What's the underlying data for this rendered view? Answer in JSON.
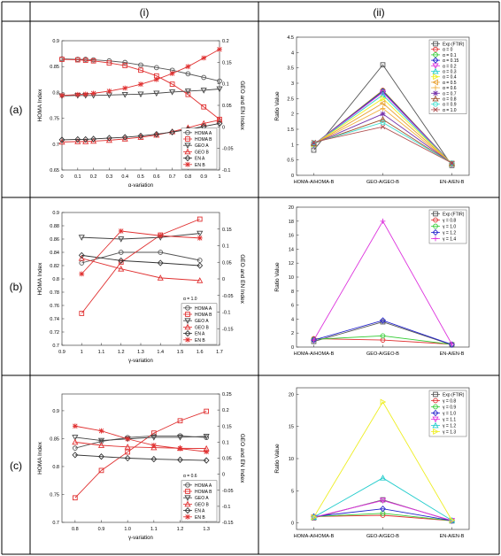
{
  "table": {
    "header_i": "(i)",
    "header_ii": "(ii)",
    "row_labels": [
      "(a)",
      "(b)",
      "(c)"
    ]
  },
  "chart_data": [
    {
      "id": "a-i",
      "type": "line",
      "xlabel": "α-variation",
      "ylabel": "HOMA Index",
      "y2label": "GEO and EN Index",
      "x": [
        0,
        0.1,
        0.15,
        0.2,
        0.3,
        0.4,
        0.5,
        0.6,
        0.7,
        0.8,
        0.9,
        1
      ],
      "xticks": [
        0,
        0.1,
        0.2,
        0.3,
        0.4,
        0.5,
        0.6,
        0.7,
        0.8,
        0.9,
        1
      ],
      "xticklabels": [
        "0",
        "0.1",
        "0.2",
        "0.3",
        "0.4",
        "0.5",
        "0.6",
        "0.7",
        "0.8",
        "0.9",
        "1"
      ],
      "ylim": [
        0.65,
        0.9
      ],
      "yticks": [
        0.65,
        0.7,
        0.75,
        0.8,
        0.85,
        0.9
      ],
      "yticklabels": [
        "0.65",
        "0.7",
        "0.75",
        "0.8",
        "0.85",
        "0.9"
      ],
      "y2lim": [
        -0.1,
        0.2
      ],
      "y2ticks": [
        -0.1,
        -0.05,
        0,
        0.05,
        0.1,
        0.15,
        0.2
      ],
      "y2ticklabels": [
        "-0.1",
        "-0.05",
        "0",
        "0.05",
        "0.1",
        "0.15",
        "0.2"
      ],
      "legend_position": "bottom-right",
      "legend_note": "",
      "series": [
        {
          "name": "HOMA A",
          "axis": "left",
          "color": "#555555",
          "marker": "circle",
          "values": [
            0.865,
            0.864,
            0.864,
            0.863,
            0.861,
            0.858,
            0.853,
            0.848,
            0.843,
            0.836,
            0.829,
            0.822
          ]
        },
        {
          "name": "HOMA B",
          "axis": "left",
          "color": "#e03030",
          "marker": "square",
          "values": [
            0.864,
            0.863,
            0.862,
            0.861,
            0.857,
            0.852,
            0.843,
            0.832,
            0.816,
            0.796,
            0.772,
            0.748
          ]
        },
        {
          "name": "GEO A",
          "axis": "right",
          "color": "#444444",
          "marker": "triangle-down",
          "values": [
            0.072,
            0.073,
            0.073,
            0.073,
            0.074,
            0.075,
            0.076,
            0.078,
            0.081,
            0.083,
            0.085,
            0.088
          ]
        },
        {
          "name": "GEO B",
          "axis": "right",
          "color": "#e03030",
          "marker": "triangle-up",
          "values": [
            -0.035,
            -0.034,
            -0.034,
            -0.033,
            -0.031,
            -0.028,
            -0.024,
            -0.019,
            -0.011,
            -0.002,
            0.008,
            0.016
          ]
        },
        {
          "name": "EN A",
          "axis": "right",
          "color": "#333333",
          "marker": "diamond",
          "values": [
            -0.03,
            -0.029,
            -0.029,
            -0.028,
            -0.026,
            -0.024,
            -0.021,
            -0.017,
            -0.012,
            -0.006,
            0.001,
            0.008
          ]
        },
        {
          "name": "EN B",
          "axis": "right",
          "color": "#e03030",
          "marker": "star",
          "values": [
            0.073,
            0.075,
            0.076,
            0.078,
            0.083,
            0.09,
            0.099,
            0.11,
            0.124,
            0.14,
            0.16,
            0.18
          ]
        }
      ]
    },
    {
      "id": "a-ii",
      "type": "line",
      "categories": [
        "HOMA-A/HOMA-B",
        "GEO-A/GEO-B",
        "EN-A/EN-B"
      ],
      "ylabel": "Ratio Value",
      "ylim": [
        0,
        4.5
      ],
      "yticks": [
        0,
        0.5,
        1,
        1.5,
        2,
        2.5,
        3,
        3.5,
        4,
        4.5
      ],
      "yticklabels": [
        "0",
        "0.5",
        "1",
        "1.5",
        "2",
        "2.5",
        "3",
        "3.5",
        "4",
        "4.5"
      ],
      "legend_position": "top-right",
      "series": [
        {
          "name": "Exp (FTIR)",
          "color": "#555555",
          "marker": "square",
          "values": [
            0.82,
            3.6,
            0.32
          ]
        },
        {
          "name": "α = 0",
          "color": "#e03030",
          "marker": "circle",
          "values": [
            1.0,
            2.77,
            0.37
          ]
        },
        {
          "name": "α = 0.1",
          "color": "#33cc33",
          "marker": "circle",
          "values": [
            1.0,
            2.75,
            0.37
          ]
        },
        {
          "name": "α = 0.15",
          "color": "#2222cc",
          "marker": "diamond",
          "values": [
            1.0,
            2.73,
            0.37
          ]
        },
        {
          "name": "α = 0.2",
          "color": "#dd33dd",
          "marker": "triangle-down",
          "values": [
            1.0,
            2.7,
            0.37
          ]
        },
        {
          "name": "α = 0.3",
          "color": "#22cccc",
          "marker": "triangle-up",
          "values": [
            1.0,
            2.62,
            0.37
          ]
        },
        {
          "name": "α = 0.4",
          "color": "#eeee22",
          "marker": "triangle-right",
          "values": [
            1.01,
            2.5,
            0.38
          ]
        },
        {
          "name": "α = 0.5",
          "color": "#e8a030",
          "marker": "triangle-left",
          "values": [
            1.01,
            2.35,
            0.38
          ]
        },
        {
          "name": "α = 0.6",
          "color": "#f0b040",
          "marker": "plus",
          "values": [
            1.02,
            2.18,
            0.38
          ]
        },
        {
          "name": "α = 0.7",
          "color": "#7733aa",
          "marker": "star",
          "values": [
            1.03,
            2.0,
            0.39
          ]
        },
        {
          "name": "α = 0.8",
          "color": "#a0522d",
          "marker": "triangle-up",
          "values": [
            1.04,
            1.82,
            0.39
          ]
        },
        {
          "name": "α = 0.9",
          "color": "#40e0d0",
          "marker": "circle",
          "values": [
            1.06,
            1.72,
            0.4
          ]
        },
        {
          "name": "α = 1.0",
          "color": "#b05050",
          "marker": "x",
          "values": [
            1.08,
            1.58,
            0.4
          ]
        }
      ]
    },
    {
      "id": "b-i",
      "type": "line",
      "xlabel": "γ-variation",
      "ylabel": "HOMA Index",
      "y2label": "GEO and EN Index",
      "x": [
        1.0,
        1.2,
        1.4,
        1.6
      ],
      "xlim": [
        0.9,
        1.7
      ],
      "xticks": [
        0.9,
        1.0,
        1.1,
        1.2,
        1.3,
        1.4,
        1.5,
        1.6,
        1.7
      ],
      "xticklabels": [
        "0.9",
        "1",
        "1.1",
        "1.2",
        "1.3",
        "1.4",
        "1.5",
        "1.6",
        "1.7"
      ],
      "ylim": [
        0.7,
        0.9
      ],
      "yticks": [
        0.7,
        0.72,
        0.74,
        0.76,
        0.78,
        0.8,
        0.82,
        0.84,
        0.86,
        0.88,
        0.9
      ],
      "yticklabels": [
        "0.7",
        "0.72",
        "0.74",
        "0.76",
        "0.78",
        "0.8",
        "0.82",
        "0.84",
        "0.86",
        "0.88",
        "0.9"
      ],
      "y2lim": [
        -0.2,
        0.2
      ],
      "y2ticks": [
        -0.15,
        -0.1,
        -0.05,
        0,
        0.05,
        0.1,
        0.15
      ],
      "y2ticklabels": [
        "-0.15",
        "-0.1",
        "-0.05",
        "0",
        "0.05",
        "0.1",
        "0.15"
      ],
      "legend_position": "bottom-right",
      "legend_note": "α = 1.0",
      "series": [
        {
          "name": "HOMA A",
          "axis": "left",
          "color": "#555555",
          "marker": "circle",
          "values": [
            0.824,
            0.84,
            0.84,
            0.828
          ]
        },
        {
          "name": "HOMA B",
          "axis": "left",
          "color": "#e03030",
          "marker": "square",
          "values": [
            0.748,
            0.825,
            0.866,
            0.89
          ]
        },
        {
          "name": "GEO A",
          "axis": "right",
          "color": "#444444",
          "marker": "triangle-down",
          "values": [
            0.125,
            0.12,
            0.125,
            0.137
          ]
        },
        {
          "name": "GEO B",
          "axis": "right",
          "color": "#e03030",
          "marker": "triangle-up",
          "values": [
            0.062,
            0.03,
            0.003,
            -0.005
          ]
        },
        {
          "name": "EN A",
          "axis": "right",
          "color": "#333333",
          "marker": "diamond",
          "values": [
            0.071,
            0.055,
            0.048,
            0.04
          ]
        },
        {
          "name": "EN B",
          "axis": "right",
          "color": "#e03030",
          "marker": "star",
          "values": [
            0.015,
            0.144,
            0.13,
            0.123
          ]
        }
      ]
    },
    {
      "id": "b-ii",
      "type": "line",
      "categories": [
        "HOMA-A/HOMA-B",
        "GEO-A/GEO-B",
        "EN-A/EN-B"
      ],
      "ylabel": "Ratio Value",
      "ylim": [
        0,
        20
      ],
      "yticks": [
        0,
        2,
        4,
        6,
        8,
        10,
        12,
        14,
        16,
        18,
        20
      ],
      "yticklabels": [
        "0",
        "2",
        "4",
        "6",
        "8",
        "10",
        "12",
        "14",
        "16",
        "18",
        "20"
      ],
      "legend_position": "top-right",
      "series": [
        {
          "name": "Exp (FTIR)",
          "color": "#555555",
          "marker": "square",
          "values": [
            0.8,
            3.6,
            0.32
          ]
        },
        {
          "name": "γ = 0.8",
          "color": "#e03030",
          "marker": "circle",
          "values": [
            1.2,
            1.0,
            0.4
          ]
        },
        {
          "name": "γ = 1.0",
          "color": "#33cc33",
          "marker": "circle",
          "values": [
            1.1,
            1.6,
            0.38
          ]
        },
        {
          "name": "γ = 1.2",
          "color": "#2222cc",
          "marker": "diamond",
          "values": [
            1.0,
            3.8,
            0.36
          ]
        },
        {
          "name": "γ = 1.4",
          "color": "#dd33dd",
          "marker": "plus",
          "values": [
            1.0,
            18.0,
            0.4
          ]
        }
      ]
    },
    {
      "id": "c-i",
      "type": "line",
      "xlabel": "γ-variation",
      "ylabel": "HOMA Index",
      "y2label": "GEO and EN Index",
      "x": [
        0.8,
        0.9,
        1.0,
        1.1,
        1.2,
        1.3
      ],
      "xlim": [
        0.75,
        1.35
      ],
      "xticks": [
        0.8,
        0.9,
        1.0,
        1.1,
        1.2,
        1.3
      ],
      "xticklabels": [
        "0.8",
        "0.9",
        "1.0",
        "1.1",
        "1.2",
        "1.3"
      ],
      "ylim": [
        0.7,
        0.93
      ],
      "yticks": [
        0.7,
        0.75,
        0.8,
        0.85,
        0.9
      ],
      "yticklabels": [
        "0.7",
        "0.75",
        "0.8",
        "0.85",
        "0.9"
      ],
      "y2lim": [
        -0.15,
        0.25
      ],
      "y2ticks": [
        -0.15,
        -0.1,
        -0.05,
        0,
        0.05,
        0.1,
        0.15,
        0.2,
        0.25
      ],
      "y2ticklabels": [
        "-0.15",
        "-0.1",
        "-0.05",
        "0",
        "0.05",
        "0.1",
        "0.15",
        "0.2",
        "0.25"
      ],
      "legend_position": "bottom-right",
      "legend_note": "α = 0.6",
      "series": [
        {
          "name": "HOMA A",
          "axis": "left",
          "color": "#555555",
          "marker": "circle",
          "values": [
            0.833,
            0.845,
            0.852,
            0.855,
            0.855,
            0.852
          ]
        },
        {
          "name": "HOMA B",
          "axis": "left",
          "color": "#e03030",
          "marker": "square",
          "values": [
            0.744,
            0.793,
            0.826,
            0.86,
            0.882,
            0.899
          ]
        },
        {
          "name": "GEO A",
          "axis": "right",
          "color": "#444444",
          "marker": "triangle-down",
          "values": [
            0.115,
            0.105,
            0.11,
            0.115,
            0.115,
            0.118
          ]
        },
        {
          "name": "GEO B",
          "axis": "right",
          "color": "#e03030",
          "marker": "triangle-up",
          "values": [
            0.1,
            0.09,
            0.085,
            0.083,
            0.081,
            0.08
          ]
        },
        {
          "name": "EN A",
          "axis": "right",
          "color": "#333333",
          "marker": "diamond",
          "values": [
            0.06,
            0.055,
            0.05,
            0.047,
            0.045,
            0.043
          ]
        },
        {
          "name": "EN B",
          "axis": "right",
          "color": "#e03030",
          "marker": "star",
          "values": [
            0.15,
            0.135,
            0.11,
            0.09,
            0.08,
            0.07
          ]
        }
      ]
    },
    {
      "id": "c-ii",
      "type": "line",
      "categories": [
        "HOMA-A/HOMA-B",
        "GEO-A/GEO-B",
        "EN-A/EN-B"
      ],
      "ylabel": "Ratio Value",
      "ylim": [
        -1,
        21
      ],
      "yticks": [
        0,
        5,
        10,
        15,
        20
      ],
      "yticklabels": [
        "0",
        "5",
        "10",
        "15",
        "20"
      ],
      "legend_position": "top-right",
      "series": [
        {
          "name": "Exp (FTIR)",
          "color": "#555555",
          "marker": "square",
          "values": [
            0.8,
            3.6,
            0.32
          ]
        },
        {
          "name": "γ = 0.8",
          "color": "#e03030",
          "marker": "circle",
          "values": [
            1.0,
            1.2,
            0.35
          ]
        },
        {
          "name": "γ = 0.9",
          "color": "#33cc33",
          "marker": "circle",
          "values": [
            1.0,
            1.5,
            0.36
          ]
        },
        {
          "name": "γ = 1.0",
          "color": "#2222cc",
          "marker": "diamond",
          "values": [
            1.0,
            2.2,
            0.37
          ]
        },
        {
          "name": "γ = 1.1",
          "color": "#dd33dd",
          "marker": "triangle-down",
          "values": [
            0.9,
            3.5,
            0.38
          ]
        },
        {
          "name": "γ = 1.2",
          "color": "#22cccc",
          "marker": "triangle-up",
          "values": [
            0.9,
            7.0,
            0.4
          ]
        },
        {
          "name": "γ = 1.3",
          "color": "#eeee22",
          "marker": "triangle-right",
          "values": [
            0.9,
            18.8,
            0.42
          ]
        }
      ]
    }
  ]
}
